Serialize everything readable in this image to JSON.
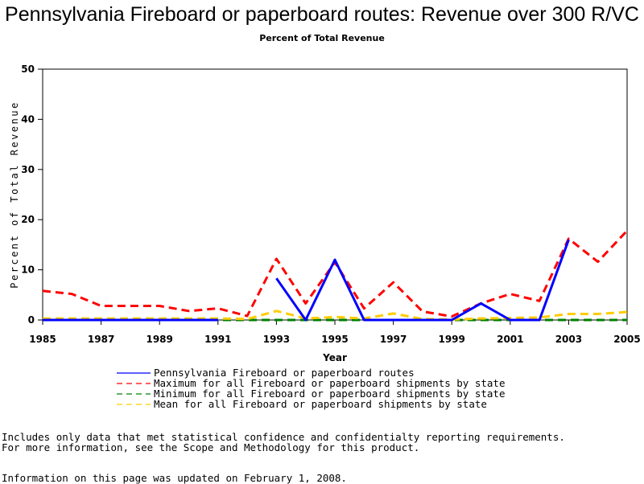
{
  "title": "Pennsylvania Fireboard or paperboard routes: Revenue over 300 R/VC",
  "subtitle": "Percent of Total Revenue",
  "notes": {
    "line1": "Includes only data that met statistical confidence and confidentialty reporting requirements.",
    "line2": "For more information, see the Scope and Methodology for this product.",
    "line3": "Information on this page was updated on February 1, 2008."
  },
  "chart_data": {
    "type": "line",
    "title": "Pennsylvania Fireboard or paperboard routes: Revenue over 300 R/VC",
    "subtitle": "Percent of Total Revenue",
    "xlabel": "Year",
    "ylabel": "Percent of Total Revenue",
    "xlim": [
      1985,
      2005
    ],
    "ylim": [
      0,
      50
    ],
    "x_ticks": [
      "1985",
      "1987",
      "1989",
      "1991",
      "1993",
      "1995",
      "1997",
      "1999",
      "2001",
      "2003",
      "2005"
    ],
    "y_ticks": [
      "0",
      "10",
      "20",
      "30",
      "40",
      "50"
    ],
    "x": [
      1985,
      1986,
      1987,
      1988,
      1989,
      1990,
      1991,
      1992,
      1993,
      1994,
      1995,
      1996,
      1997,
      1998,
      1999,
      2000,
      2001,
      2002,
      2003,
      2004,
      2005
    ],
    "series": [
      {
        "name": "Pennsylvania Fireboard or paperboard routes",
        "color": "#0000ff",
        "style": "solid",
        "values": [
          0,
          0,
          0,
          0,
          0,
          0,
          0,
          null,
          8.3,
          0,
          12,
          0,
          0,
          0,
          0,
          3.3,
          0,
          0,
          16,
          null,
          null
        ]
      },
      {
        "name": "Maximum for all Fireboard or paperboard shipments by state",
        "color": "#ff0000",
        "style": "dashed",
        "values": [
          5.8,
          5.2,
          2.8,
          2.8,
          2.8,
          1.8,
          2.3,
          0.8,
          12.2,
          3.3,
          11.5,
          2.3,
          7.5,
          1.7,
          0.7,
          3.3,
          5.2,
          3.8,
          16.2,
          11.6,
          17.8
        ]
      },
      {
        "name": "Minimum for all Fireboard or paperboard shipments by state",
        "color": "#008000",
        "style": "dashed",
        "values": [
          0,
          0,
          0,
          0,
          0,
          0,
          0,
          0,
          0,
          0,
          0,
          0,
          0,
          0,
          0,
          0,
          0,
          0,
          0,
          0,
          0
        ]
      },
      {
        "name": "Mean for all Fireboard or paperboard shipments by state",
        "color": "#ffcc00",
        "style": "dashed",
        "values": [
          0.3,
          0.3,
          0.3,
          0.3,
          0.3,
          0.3,
          0.3,
          0.2,
          1.8,
          0.3,
          0.6,
          0.3,
          1.3,
          0.2,
          0.1,
          0.3,
          0.4,
          0.5,
          1.2,
          1.2,
          1.6
        ]
      }
    ],
    "grid": false,
    "legend_position": "bottom"
  }
}
